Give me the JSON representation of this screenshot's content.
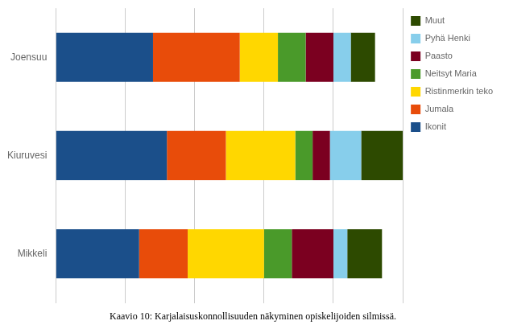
{
  "chart_data": {
    "type": "bar",
    "orientation": "horizontal",
    "stacked": true,
    "title": "Kaavio 10: Karjalaisuskonnollisuuden näkyminen opiskelijoiden silmissä.",
    "categories": [
      "Joensuu",
      "Kiuruvesi",
      "Mikkeli"
    ],
    "series": [
      {
        "name": "Ikonit",
        "color": "#1b4f8a",
        "values": [
          28,
          32,
          24
        ]
      },
      {
        "name": "Jumala",
        "color": "#e84c0a",
        "values": [
          25,
          17,
          14
        ]
      },
      {
        "name": "Ristinmerkin teko",
        "color": "#ffd700",
        "values": [
          11,
          20,
          22
        ]
      },
      {
        "name": "Neitsyt Maria",
        "color": "#4a9a2a",
        "values": [
          8,
          5,
          8
        ]
      },
      {
        "name": "Paasto",
        "color": "#7b0020",
        "values": [
          8,
          5,
          12
        ]
      },
      {
        "name": "Pyhä Henki",
        "color": "#87ceeb",
        "values": [
          5,
          9,
          4
        ]
      },
      {
        "name": "Muut",
        "color": "#2d4a00",
        "values": [
          7,
          12,
          10
        ]
      }
    ],
    "xlim": [
      0,
      100
    ],
    "xticks": [
      0,
      20,
      40,
      60,
      80,
      100
    ],
    "grid": true,
    "legend": "right",
    "tick_labels": "y"
  }
}
